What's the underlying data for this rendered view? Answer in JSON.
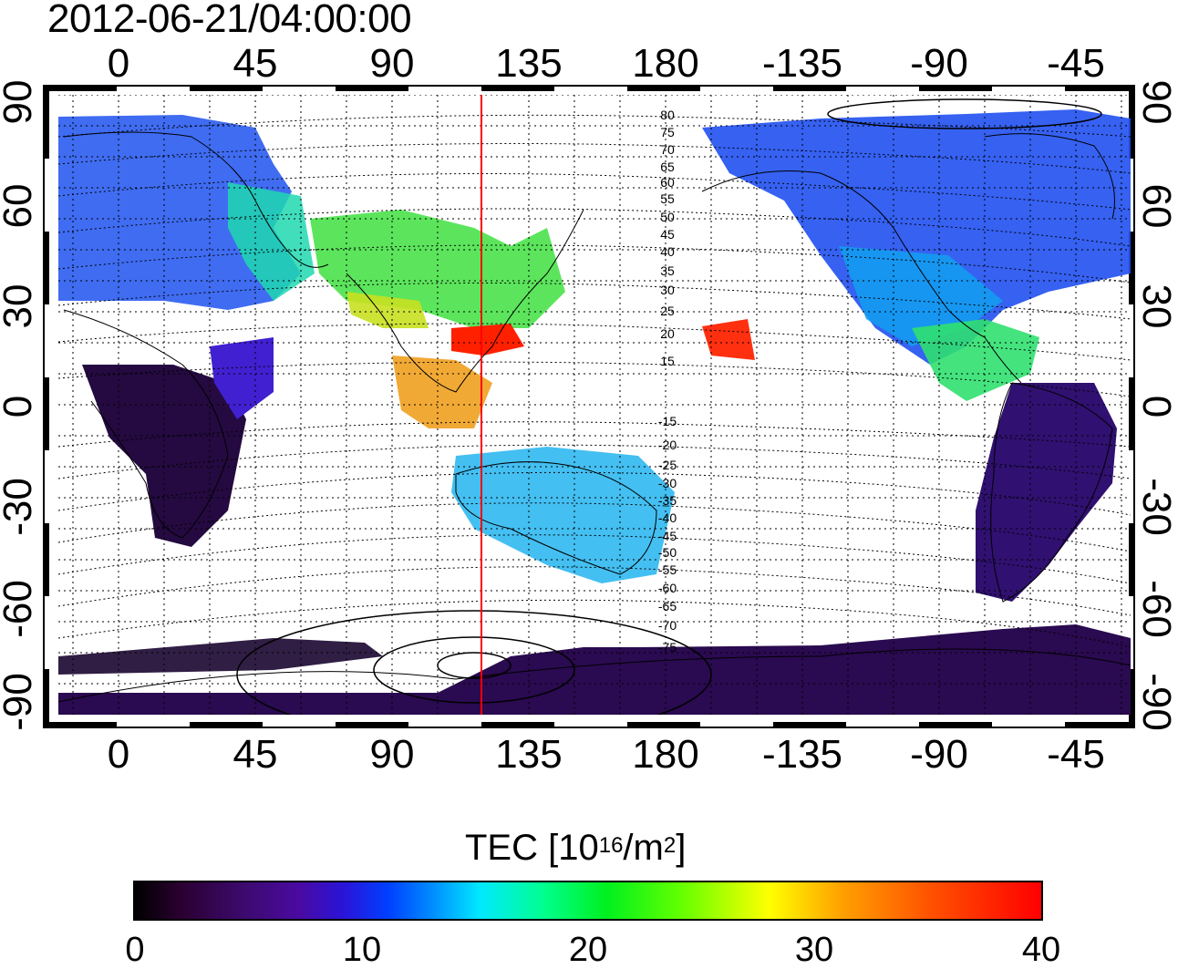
{
  "title": "2012-06-21/04:00:00",
  "map": {
    "lon_ticks": [
      "0",
      "45",
      "90",
      "135",
      "180",
      "-135",
      "-90",
      "-45"
    ],
    "lat_ticks": [
      "90",
      "60",
      "30",
      "0",
      "-30",
      "-60",
      "-90"
    ],
    "magnetic_latitude_labels": [
      "80",
      "75",
      "70",
      "65",
      "60",
      "55",
      "50",
      "45",
      "40",
      "35",
      "30",
      "25",
      "20",
      "15",
      "-15",
      "-20",
      "-25",
      "-30",
      "-35",
      "-40",
      "-45",
      "-50",
      "-55",
      "-60",
      "-65",
      "-70",
      "-75"
    ],
    "meridian_line_color": "#ff0000",
    "grid": "dotted"
  },
  "colorbar": {
    "title_main": "TEC  [10",
    "title_exp": "16",
    "title_unit": "/m",
    "title_exp2": "2",
    "title_end": "]",
    "ticks": [
      "0",
      "10",
      "20",
      "30",
      "40"
    ],
    "range": [
      0,
      40
    ],
    "colormap": [
      "#000000",
      "#3c0a6e",
      "#0040ff",
      "#00e8ff",
      "#00f020",
      "#ffff00",
      "#ff5000",
      "#ff0000"
    ]
  }
}
